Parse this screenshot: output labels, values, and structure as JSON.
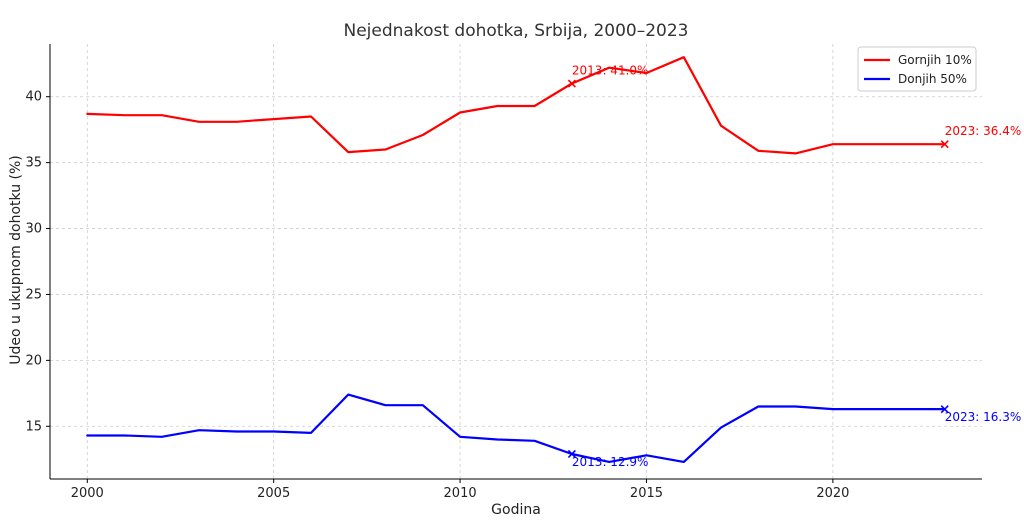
{
  "chart_data": {
    "type": "line",
    "title": "Nejednakost dohotka, Srbija, 2000–2023",
    "xlabel": "Godina",
    "ylabel": "Udeo u ukupnom dohotku (%)",
    "xlim": [
      1999,
      2024
    ],
    "ylim": [
      11,
      44
    ],
    "x_ticks": [
      2000,
      2005,
      2010,
      2015,
      2020
    ],
    "y_ticks": [
      15,
      20,
      25,
      30,
      35,
      40
    ],
    "grid": true,
    "legend_position": "top-right",
    "x": [
      2000,
      2001,
      2002,
      2003,
      2004,
      2005,
      2006,
      2007,
      2008,
      2009,
      2010,
      2011,
      2012,
      2013,
      2014,
      2015,
      2016,
      2017,
      2018,
      2019,
      2020,
      2021,
      2022,
      2023
    ],
    "series": [
      {
        "name": "Gornjih 10%",
        "color": "#ff0000",
        "values": [
          38.7,
          38.6,
          38.6,
          38.1,
          38.1,
          38.3,
          38.5,
          35.8,
          36.0,
          37.1,
          38.8,
          39.3,
          39.3,
          41.0,
          42.2,
          41.8,
          43.0,
          37.8,
          35.9,
          35.7,
          36.4,
          36.4,
          36.4,
          36.4
        ],
        "annotations": [
          {
            "x": 2013,
            "y": 41.0,
            "label": "2013: 41.0%"
          },
          {
            "x": 2023,
            "y": 36.4,
            "label": "2023: 36.4%"
          }
        ]
      },
      {
        "name": "Donjih 50%",
        "color": "#0000ff",
        "values": [
          14.3,
          14.3,
          14.2,
          14.7,
          14.6,
          14.6,
          14.5,
          17.4,
          16.6,
          16.6,
          14.2,
          14.0,
          13.9,
          12.9,
          12.3,
          12.8,
          12.3,
          14.9,
          16.5,
          16.5,
          16.3,
          16.3,
          16.3,
          16.3
        ],
        "annotations": [
          {
            "x": 2013,
            "y": 12.9,
            "label": "2013: 12.9%"
          },
          {
            "x": 2023,
            "y": 16.3,
            "label": "2023: 16.3%"
          }
        ]
      }
    ]
  }
}
